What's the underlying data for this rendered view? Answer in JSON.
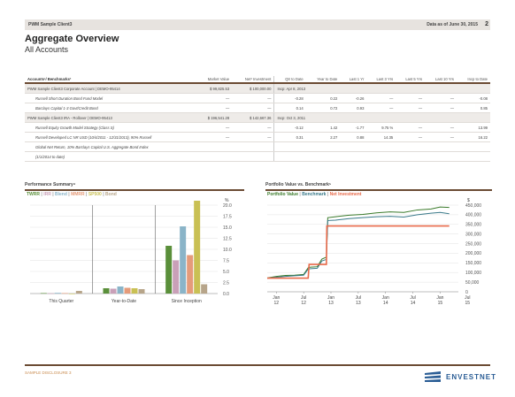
{
  "header": {
    "left": "PWM Sample Client3",
    "right": "Data as of June 30, 2015",
    "page": "2"
  },
  "page_title": "Aggregate Overview",
  "page_subtitle": "All Accounts",
  "accounts_table": {
    "columns": [
      "Accounts¹/ Benchmarks²",
      "Market Value",
      "Net³ Investment",
      "Qtr to Date",
      "Year to Date",
      "Last 1 Yr",
      "Last 3 Yrs",
      "Last 5 Yrs",
      "Last 10 Yrs",
      "Incp to Date"
    ],
    "rows": [
      {
        "type": "parent",
        "name": "PWM Sample Client3 Corporate Account | DEMO-95414",
        "mv": "$ 99,825.53",
        "ni": "$ 100,000.00",
        "incp": "Incp: Apr 8, 2013",
        "perf": []
      },
      {
        "type": "child",
        "name": "Russell Short Duration Bond Fund Model",
        "mv": "—",
        "ni": "—",
        "perf": [
          "-0.28",
          "0.22",
          "-0.26",
          "—",
          "—",
          "—",
          "-0.08"
        ]
      },
      {
        "type": "child",
        "name": "Barclays Capital 1-3 Govt/Credit Bond",
        "mv": "—",
        "ni": "—",
        "perf": [
          "0.14",
          "0.72",
          "0.93",
          "—",
          "—",
          "—",
          "0.85"
        ]
      },
      {
        "type": "parent",
        "name": "PWM Sample Client3 IRA - Rollover | DEMO-95413",
        "mv": "$ 196,541.28",
        "ni": "$ 142,667.36",
        "incp": "Incp: Oct 3, 2011",
        "perf": []
      },
      {
        "type": "child",
        "name": "Russell Equity Growth Model Strategy (Class S)",
        "mv": "—",
        "ni": "—",
        "perf": [
          "-0.12",
          "1.42",
          "-1.77",
          "9.75 %",
          "—",
          "—",
          "13.99"
        ]
      },
      {
        "type": "child",
        "name": "Russell Developed LC NR USD (10/4/2011 - 12/31/2013), 90% Russell",
        "mv": "—",
        "ni": "—",
        "perf": [
          "0.31",
          "2.27",
          "0.88",
          "14.35",
          "—",
          "—",
          "16.22"
        ]
      },
      {
        "type": "cont",
        "name": "Global Net Return, 10% Barclays Capital U.S. Aggregate Bond Index",
        "mv": "",
        "ni": "",
        "perf": []
      },
      {
        "type": "cont",
        "name": "(1/1/2014 to date)",
        "mv": "",
        "ni": "",
        "perf": []
      }
    ]
  },
  "perf_summary": {
    "title": "Performance Summary⁴",
    "legend": [
      {
        "label": "TWRR",
        "color": "#5a8f3a"
      },
      {
        "label": "IRR",
        "color": "#c9a0b8"
      },
      {
        "label": "Blend",
        "color": "#8ab4c8"
      },
      {
        "label": "MMRR",
        "color": "#e59b7a"
      },
      {
        "label": "SP500",
        "color": "#c9c054"
      },
      {
        "label": "Bond",
        "color": "#b7a58a"
      }
    ],
    "unit": "%"
  },
  "pv_chart": {
    "title": "Portfolio Value vs. Benchmark⁵",
    "legend": [
      {
        "label": "Portfolio Value",
        "color": "#3a7a2a"
      },
      {
        "label": "Benchmark",
        "color": "#3a7a8a"
      },
      {
        "label": "Net Investment",
        "color": "#e86a4a"
      }
    ],
    "unit": "$"
  },
  "chart_data": [
    {
      "type": "bar",
      "title": "Performance Summary⁴",
      "categories": [
        "This Quarter",
        "Year-to-Date",
        "Since Inception"
      ],
      "ylim": [
        0,
        20
      ],
      "yticks": [
        "20.0",
        "17.5",
        "15.0",
        "12.5",
        "10.0",
        "7.5",
        "5.0",
        "2.5",
        "0.0"
      ],
      "series": [
        {
          "name": "TWRR",
          "color": "#5a8f3a",
          "values": [
            0.1,
            1.2,
            10.8
          ]
        },
        {
          "name": "IRR",
          "color": "#c9a0b8",
          "values": [
            0.05,
            1.1,
            7.5
          ]
        },
        {
          "name": "Blend",
          "color": "#8ab4c8",
          "values": [
            0.15,
            1.6,
            15.2
          ]
        },
        {
          "name": "MMRR",
          "color": "#e59b7a",
          "values": [
            0.1,
            1.3,
            8.7
          ]
        },
        {
          "name": "SP500",
          "color": "#c9c054",
          "values": [
            -0.1,
            1.2,
            21.0
          ]
        },
        {
          "name": "Bond",
          "color": "#b7a58a",
          "values": [
            0.6,
            1.0,
            2.1
          ]
        }
      ]
    },
    {
      "type": "line",
      "title": "Portfolio Value vs. Benchmark⁵",
      "x_ticks": [
        "Jan 12",
        "Jul 12",
        "Jan 13",
        "Jul 13",
        "Jan 14",
        "Jul 14",
        "Jan 15",
        "Jul 15"
      ],
      "xlim": [
        0,
        42
      ],
      "ylim": [
        0,
        450000
      ],
      "yticks": [
        "450,000",
        "400,000",
        "350,000",
        "300,000",
        "250,000",
        "200,000",
        "150,000",
        "100,000",
        "50,000",
        "0"
      ],
      "series": [
        {
          "name": "Portfolio Value",
          "color": "#3a7a2a",
          "x": [
            0,
            2,
            4,
            6,
            8,
            9,
            9.5,
            11,
            12,
            13,
            13.3,
            15,
            18,
            21,
            24,
            27,
            30,
            33,
            36,
            38,
            40
          ],
          "values": [
            72000,
            80000,
            85000,
            86000,
            90000,
            125000,
            128000,
            130000,
            170000,
            180000,
            385000,
            390000,
            398000,
            402000,
            410000,
            415000,
            412000,
            425000,
            430000,
            440000,
            438000
          ]
        },
        {
          "name": "Benchmark",
          "color": "#3a7a8a",
          "x": [
            0,
            2,
            4,
            6,
            8,
            9,
            9.5,
            11,
            12,
            13,
            13.3,
            15,
            18,
            21,
            24,
            27,
            30,
            33,
            36,
            38,
            40
          ],
          "values": [
            70000,
            76000,
            80000,
            83000,
            86000,
            118000,
            120000,
            122000,
            160000,
            168000,
            370000,
            372000,
            380000,
            385000,
            390000,
            392000,
            388000,
            400000,
            408000,
            412000,
            405000
          ]
        },
        {
          "name": "Net Investment",
          "color": "#e86a4a",
          "x": [
            0,
            9,
            9.2,
            13,
            13.1,
            40
          ],
          "values": [
            71000,
            71000,
            142000,
            142000,
            342000,
            342000
          ]
        }
      ]
    }
  ],
  "footer": "SAMPLE DISCLOSURE 3",
  "brand": "ENVESTNET"
}
